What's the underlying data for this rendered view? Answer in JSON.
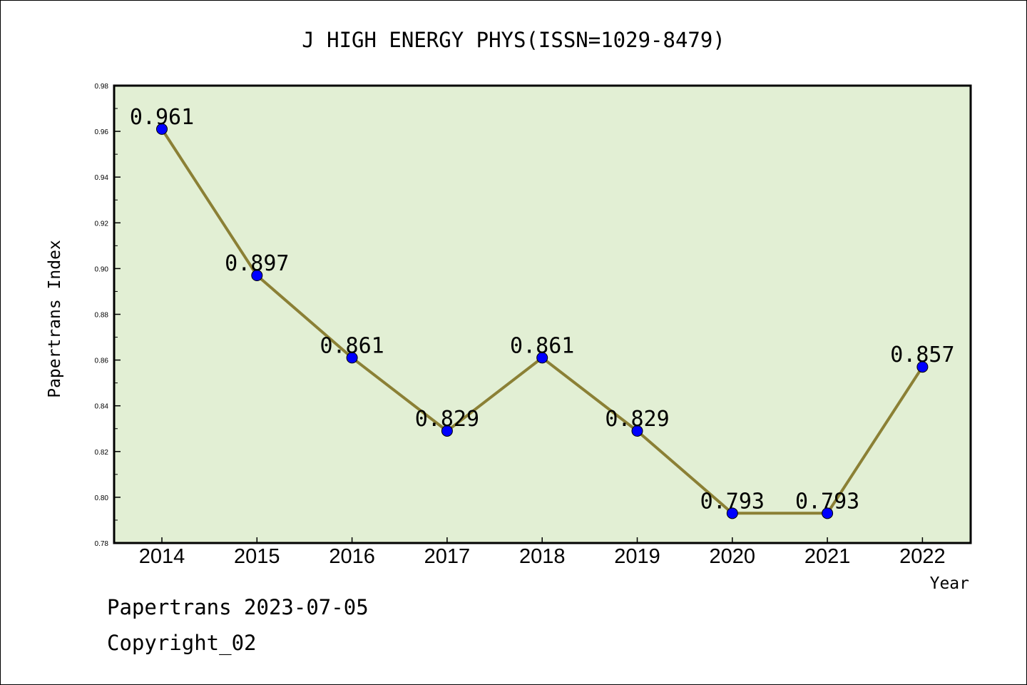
{
  "chart_data": {
    "type": "line",
    "title": "J HIGH ENERGY PHYS(ISSN=1029-8479)",
    "xlabel": "Year",
    "ylabel": "Papertrans Index",
    "categories": [
      "2014",
      "2015",
      "2016",
      "2017",
      "2018",
      "2019",
      "2020",
      "2021",
      "2022"
    ],
    "values": [
      0.961,
      0.897,
      0.861,
      0.829,
      0.861,
      0.829,
      0.793,
      0.793,
      0.857
    ],
    "data_labels": [
      "0.961",
      "0.897",
      "0.861",
      "0.829",
      "0.861",
      "0.829",
      "0.793",
      "0.793",
      "0.857"
    ],
    "ylim": [
      0.78,
      0.98
    ],
    "yticks": [
      "0.78",
      "0.80",
      "0.82",
      "0.84",
      "0.86",
      "0.88",
      "0.90",
      "0.92",
      "0.94",
      "0.96",
      "0.98"
    ],
    "grid": false,
    "colors": {
      "plot_background": "#e2efd4",
      "line": "#8b8035",
      "marker": "#0000ff"
    }
  },
  "footer": {
    "line1": "Papertrans 2023-07-05",
    "line2": "Copyright_02"
  }
}
